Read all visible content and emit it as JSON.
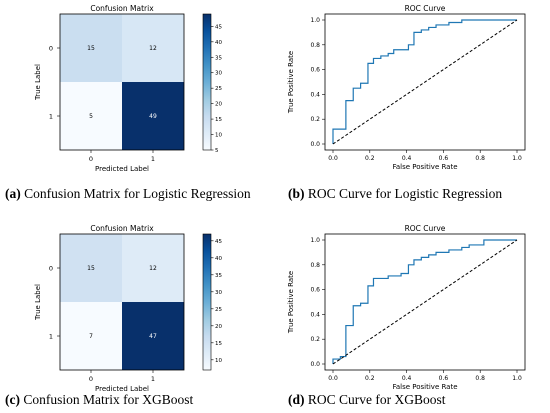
{
  "figure": {
    "captions": [
      {
        "label": "(a)",
        "text": "Confusion Matrix for Logistic Regression"
      },
      {
        "label": "(b)",
        "text": "ROC Curve for Logistic Regression"
      },
      {
        "label": "(c)",
        "text": "Confusion Matrix for XGBoost"
      },
      {
        "label": "(d)",
        "text": "ROC Curve for XGBoost"
      }
    ]
  },
  "colors": {
    "light": "#f7fbff",
    "dark": "#08306b",
    "roc_line": "#1f77b4",
    "diagonal": "#000000"
  },
  "chart_data": [
    {
      "type": "heatmap",
      "title": "Confusion Matrix",
      "xlabel": "Predicted Label",
      "ylabel": "True Label",
      "x_categories": [
        "0",
        "1"
      ],
      "y_categories": [
        "0",
        "1"
      ],
      "values": [
        [
          15,
          12
        ],
        [
          5,
          49
        ]
      ],
      "colorbar": {
        "min": 5,
        "max": 49,
        "ticks": [
          "5",
          "10",
          "15",
          "20",
          "25",
          "30",
          "35",
          "40",
          "45"
        ],
        "tick_values": [
          5,
          10,
          15,
          20,
          25,
          30,
          35,
          40,
          45
        ],
        "colormap": "Blues"
      }
    },
    {
      "type": "line",
      "title": "ROC Curve",
      "xlabel": "False Positive Rate",
      "ylabel": "True Positive Rate",
      "xlim": [
        0,
        1
      ],
      "ylim": [
        0,
        1
      ],
      "xticks": [
        "0.0",
        "0.2",
        "0.4",
        "0.6",
        "0.8",
        "1.0"
      ],
      "yticks": [
        "0.0",
        "0.2",
        "0.4",
        "0.6",
        "0.8",
        "1.0"
      ],
      "series": [
        {
          "x": [
            0,
            0,
            0.07,
            0.07,
            0.11,
            0.11,
            0.15,
            0.15,
            0.19,
            0.19,
            0.22,
            0.22,
            0.26,
            0.26,
            0.3,
            0.3,
            0.33,
            0.33,
            0.41,
            0.41,
            0.44,
            0.44,
            0.48,
            0.48,
            0.52,
            0.52,
            0.56,
            0.56,
            0.63,
            0.63,
            0.7,
            0.7,
            0.78,
            0.78,
            1.0
          ],
          "y": [
            0,
            0.12,
            0.12,
            0.35,
            0.35,
            0.45,
            0.45,
            0.49,
            0.49,
            0.65,
            0.65,
            0.69,
            0.69,
            0.71,
            0.71,
            0.73,
            0.73,
            0.76,
            0.76,
            0.8,
            0.8,
            0.9,
            0.9,
            0.92,
            0.92,
            0.94,
            0.94,
            0.96,
            0.96,
            0.98,
            0.98,
            1.0,
            1.0,
            1.0,
            1.0
          ]
        },
        {
          "x": [
            0,
            1
          ],
          "y": [
            0,
            1
          ],
          "style": "dashed"
        }
      ]
    },
    {
      "type": "heatmap",
      "title": "Confusion Matrix",
      "xlabel": "Predicted Label",
      "ylabel": "True Label",
      "x_categories": [
        "0",
        "1"
      ],
      "y_categories": [
        "0",
        "1"
      ],
      "values": [
        [
          15,
          12
        ],
        [
          7,
          47
        ]
      ],
      "colorbar": {
        "min": 7,
        "max": 47,
        "ticks": [
          "10",
          "15",
          "20",
          "25",
          "30",
          "35",
          "40",
          "45"
        ],
        "tick_values": [
          10,
          15,
          20,
          25,
          30,
          35,
          40,
          45
        ],
        "colormap": "Blues"
      }
    },
    {
      "type": "line",
      "title": "ROC Curve",
      "xlabel": "False Positive Rate",
      "ylabel": "True Positive Rate",
      "xlim": [
        0,
        1
      ],
      "ylim": [
        0,
        1
      ],
      "xticks": [
        "0.0",
        "0.2",
        "0.4",
        "0.6",
        "0.8",
        "1.0"
      ],
      "yticks": [
        "0.0",
        "0.2",
        "0.4",
        "0.6",
        "0.8",
        "1.0"
      ],
      "series": [
        {
          "x": [
            0,
            0,
            0.04,
            0.04,
            0.07,
            0.07,
            0.11,
            0.11,
            0.15,
            0.15,
            0.19,
            0.19,
            0.22,
            0.22,
            0.3,
            0.3,
            0.37,
            0.37,
            0.41,
            0.41,
            0.44,
            0.44,
            0.48,
            0.48,
            0.52,
            0.52,
            0.56,
            0.56,
            0.63,
            0.63,
            0.7,
            0.7,
            0.74,
            0.74,
            0.82,
            0.82,
            1.0
          ],
          "y": [
            0,
            0.04,
            0.04,
            0.06,
            0.06,
            0.31,
            0.31,
            0.47,
            0.47,
            0.49,
            0.49,
            0.63,
            0.63,
            0.69,
            0.69,
            0.71,
            0.71,
            0.73,
            0.73,
            0.8,
            0.8,
            0.84,
            0.84,
            0.86,
            0.86,
            0.88,
            0.88,
            0.9,
            0.9,
            0.92,
            0.92,
            0.94,
            0.94,
            0.96,
            0.96,
            1.0,
            1.0
          ]
        },
        {
          "x": [
            0,
            1
          ],
          "y": [
            0,
            1
          ],
          "style": "dashed"
        }
      ]
    }
  ]
}
